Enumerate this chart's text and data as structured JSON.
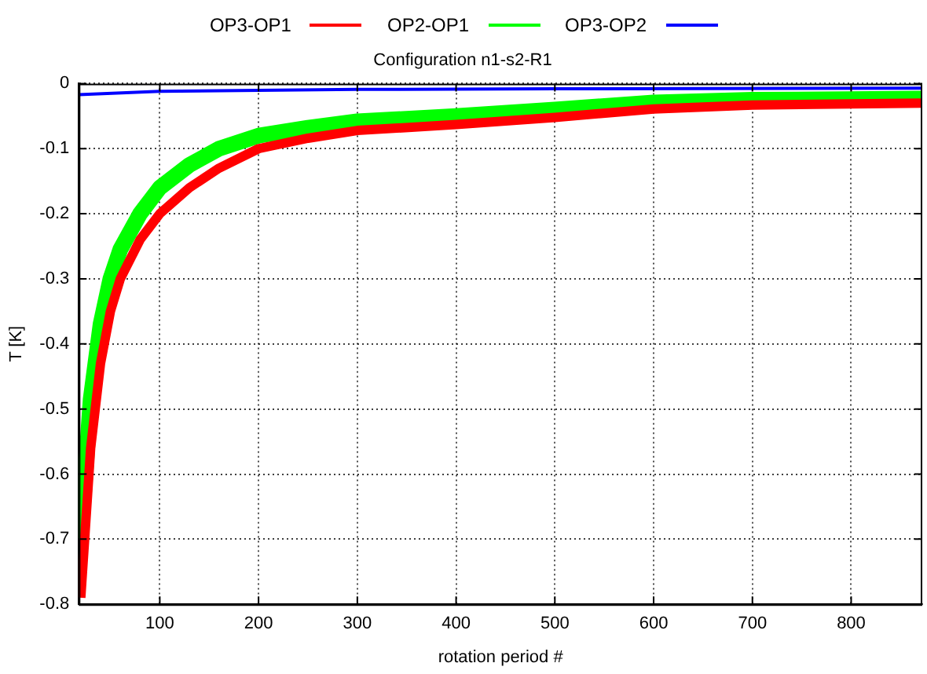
{
  "chart_data": {
    "type": "line",
    "title": "Configuration n1-s2-R1",
    "xlabel": "rotation period #",
    "ylabel": "T [K]",
    "xlim": [
      18,
      872
    ],
    "xticks": [
      100,
      200,
      300,
      400,
      500,
      600,
      700,
      800
    ],
    "ylim": [
      -0.8,
      0
    ],
    "yticks": [
      -0.8,
      -0.7,
      -0.6,
      -0.5,
      -0.4,
      -0.3,
      -0.2,
      -0.1,
      0
    ],
    "grid": true,
    "legend": "top",
    "marker": "none",
    "line_style": "solid",
    "series": [
      {
        "name": "OP3-OP1",
        "color": "#ff0000",
        "x": [
          20,
          30,
          40,
          50,
          60,
          80,
          100,
          130,
          160,
          200,
          250,
          300,
          400,
          500,
          600,
          700,
          872
        ],
        "values": [
          -0.79,
          -0.56,
          -0.43,
          -0.35,
          -0.3,
          -0.24,
          -0.2,
          -0.16,
          -0.13,
          -0.1,
          -0.084,
          -0.072,
          -0.063,
          -0.052,
          -0.039,
          -0.033,
          -0.03
        ]
      },
      {
        "name": "OP2-OP1",
        "color": "#00ff00",
        "x": [
          20,
          30,
          40,
          50,
          60,
          80,
          100,
          130,
          160,
          200,
          250,
          300,
          400,
          500,
          600,
          700,
          872
        ],
        "values": [
          -0.7,
          -0.485,
          -0.37,
          -0.3,
          -0.255,
          -0.2,
          -0.16,
          -0.125,
          -0.1,
          -0.08,
          -0.068,
          -0.058,
          -0.05,
          -0.04,
          -0.029,
          -0.025,
          -0.023
        ]
      },
      {
        "name": "OP3-OP2",
        "color": "#0000ff",
        "x": [
          18,
          100,
          300,
          500,
          872
        ],
        "values": [
          -0.017,
          -0.012,
          -0.009,
          -0.008,
          -0.007
        ]
      }
    ]
  }
}
